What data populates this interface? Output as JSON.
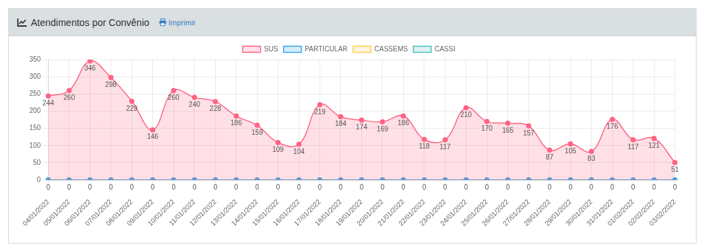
{
  "header": {
    "title": "Atendimentos por Convênio",
    "action": "Imprimir"
  },
  "chart_data": {
    "type": "area",
    "categories": [
      "04/01/2022",
      "05/01/2022",
      "06/01/2022",
      "07/01/2022",
      "08/01/2022",
      "09/01/2022",
      "10/01/2022",
      "11/01/2022",
      "12/01/2022",
      "13/01/2022",
      "14/01/2022",
      "15/01/2022",
      "16/01/2022",
      "17/01/2022",
      "18/01/2022",
      "19/01/2022",
      "20/01/2022",
      "21/01/2022",
      "22/01/2022",
      "23/01/2022",
      "24/01/2022",
      "25/01/2022",
      "26/01/2022",
      "27/01/2022",
      "28/01/2022",
      "29/01/2022",
      "30/01/2022",
      "31/01/2022",
      "01/02/2022",
      "02/02/2022",
      "03/02/2022"
    ],
    "series": [
      {
        "name": "SUS",
        "color": "#ff6384",
        "values": [
          244,
          260,
          346,
          298,
          229,
          146,
          260,
          240,
          228,
          186,
          159,
          109,
          104,
          219,
          184,
          174,
          169,
          186,
          118,
          117,
          210,
          170,
          165,
          157,
          87,
          105,
          83,
          176,
          117,
          121,
          51
        ]
      },
      {
        "name": "PARTICULAR",
        "color": "#36a2eb",
        "values": [
          0,
          0,
          0,
          0,
          0,
          0,
          0,
          0,
          0,
          0,
          0,
          0,
          0,
          0,
          0,
          0,
          0,
          0,
          0,
          0,
          0,
          0,
          0,
          0,
          0,
          0,
          0,
          0,
          0,
          0,
          0
        ]
      },
      {
        "name": "CASSEMS",
        "color": "#ffcd56",
        "values": [
          0,
          0,
          0,
          0,
          0,
          0,
          0,
          0,
          0,
          0,
          0,
          0,
          0,
          0,
          0,
          0,
          0,
          0,
          0,
          0,
          0,
          0,
          0,
          0,
          0,
          0,
          0,
          0,
          0,
          0,
          0
        ]
      },
      {
        "name": "CASSI",
        "color": "#4bc0c0",
        "values": [
          0,
          0,
          0,
          0,
          0,
          0,
          0,
          0,
          0,
          0,
          0,
          0,
          0,
          0,
          0,
          0,
          0,
          0,
          0,
          0,
          0,
          0,
          0,
          0,
          0,
          0,
          0,
          0,
          0,
          0,
          0
        ]
      }
    ],
    "ylim": [
      0,
      350
    ],
    "yticks": [
      0,
      50,
      100,
      150,
      200,
      250,
      300,
      350
    ],
    "grid": true,
    "legend": "top",
    "data_labels": true,
    "marker": "circle"
  }
}
